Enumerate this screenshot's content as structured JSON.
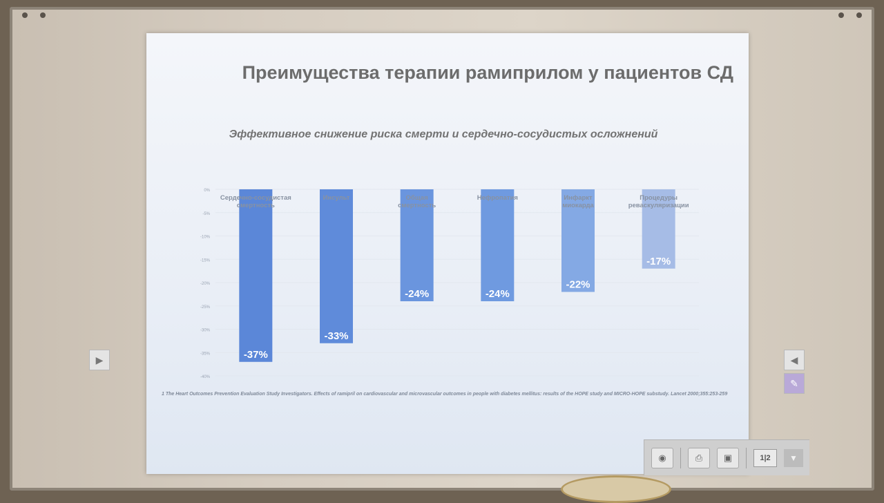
{
  "slide": {
    "title": "Преимущества терапии рамиприлом у пациентов СД",
    "subtitle": "Эффективное снижение риска смерти и сердечно-сосудистых осложнений",
    "footnote": "1 The Heart Outcomes Prevention Evaluation Study Investigators. Effects of ramipril on cardiovascular and microvascular outcomes in people with diabetes mellitus: results of the HOPE study and MICRO-HOPE substudy. Lancet 2000;355:253-259"
  },
  "chart_data": {
    "type": "bar",
    "categories": [
      "Сердечно-сосудистая смертность",
      "Инсульт",
      "Общая смертность",
      "Нефропатия",
      "Инфаркт миокарда",
      "Процедуры реваскуляризации"
    ],
    "values": [
      -37,
      -33,
      -24,
      -24,
      -22,
      -17
    ],
    "data_labels": [
      "-37%",
      "-33%",
      "-24%",
      "-24%",
      "-22%",
      "-17%"
    ],
    "ylim": [
      -40,
      0
    ],
    "yticks": [
      "0%",
      "-5%",
      "-10%",
      "-15%",
      "-20%",
      "-25%",
      "-30%",
      "-35%",
      "-40%"
    ],
    "grid": true,
    "colors": [
      "#5b87d8",
      "#5f8bda",
      "#6a95de",
      "#6f9ae0",
      "#84a9e4",
      "#a6bce6"
    ]
  },
  "toolbar": {
    "camera_icon": "camera-icon",
    "print_icon": "print-icon",
    "save_icon": "save-icon",
    "page_indicator": "1|2",
    "more_icon": "chevron-down-icon"
  }
}
